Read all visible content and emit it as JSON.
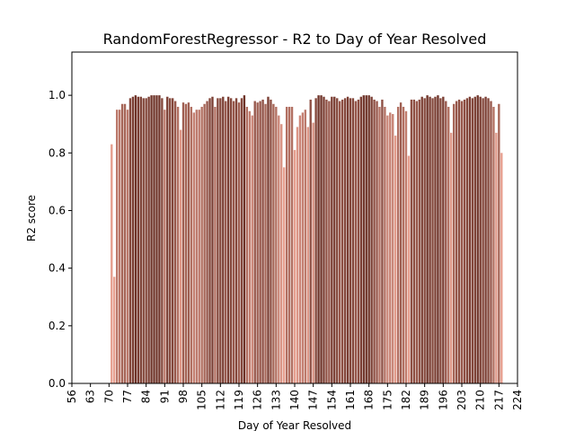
{
  "chart_data": {
    "type": "bar",
    "title": "RandomForestRegressor - R2 to Day of Year Resolved",
    "xlabel": "Day of Year Resolved",
    "ylabel": "R2 score",
    "x": [
      71,
      72,
      73,
      74,
      75,
      76,
      77,
      78,
      79,
      80,
      81,
      82,
      83,
      84,
      85,
      86,
      87,
      88,
      89,
      90,
      91,
      92,
      93,
      94,
      95,
      96,
      97,
      98,
      99,
      100,
      101,
      102,
      103,
      104,
      105,
      106,
      107,
      108,
      109,
      110,
      111,
      112,
      113,
      114,
      115,
      116,
      117,
      118,
      119,
      120,
      121,
      122,
      123,
      124,
      125,
      126,
      127,
      128,
      129,
      130,
      131,
      132,
      133,
      134,
      135,
      136,
      137,
      138,
      139,
      140,
      141,
      142,
      143,
      144,
      145,
      146,
      147,
      148,
      149,
      150,
      151,
      152,
      153,
      154,
      155,
      156,
      157,
      158,
      159,
      160,
      161,
      162,
      163,
      164,
      165,
      166,
      167,
      168,
      169,
      170,
      171,
      172,
      173,
      174,
      175,
      176,
      177,
      178,
      179,
      180,
      181,
      182,
      183,
      184,
      185,
      186,
      187,
      188,
      189,
      190,
      191,
      192,
      193,
      194,
      195,
      196,
      197,
      198,
      199,
      200,
      201,
      202,
      203,
      204,
      205,
      206,
      207,
      208,
      209,
      210,
      211,
      212,
      213,
      214,
      215,
      216,
      217,
      218
    ],
    "values": [
      0.83,
      0.37,
      0.95,
      0.95,
      0.97,
      0.97,
      0.95,
      0.99,
      0.995,
      1.0,
      0.995,
      0.995,
      0.99,
      0.99,
      0.995,
      1.0,
      1.0,
      1.0,
      1.0,
      0.99,
      0.95,
      0.995,
      0.99,
      0.99,
      0.98,
      0.96,
      0.88,
      0.975,
      0.97,
      0.975,
      0.96,
      0.94,
      0.95,
      0.95,
      0.96,
      0.97,
      0.98,
      0.99,
      0.995,
      0.96,
      0.99,
      0.99,
      0.995,
      0.98,
      0.995,
      0.99,
      0.98,
      0.99,
      0.975,
      0.99,
      1.0,
      0.96,
      0.945,
      0.93,
      0.98,
      0.975,
      0.98,
      0.985,
      0.97,
      0.995,
      0.985,
      0.97,
      0.96,
      0.93,
      0.9,
      0.75,
      0.96,
      0.96,
      0.96,
      0.81,
      0.89,
      0.93,
      0.94,
      0.95,
      0.89,
      0.985,
      0.905,
      0.99,
      1.0,
      1.0,
      0.995,
      0.985,
      0.98,
      0.995,
      0.995,
      0.99,
      0.98,
      0.985,
      0.99,
      0.995,
      0.99,
      0.99,
      0.98,
      0.985,
      0.995,
      1.0,
      1.0,
      1.0,
      0.995,
      0.985,
      0.98,
      0.96,
      0.985,
      0.96,
      0.93,
      0.94,
      0.935,
      0.86,
      0.96,
      0.975,
      0.96,
      0.945,
      0.79,
      0.985,
      0.985,
      0.98,
      0.985,
      0.995,
      0.99,
      1.0,
      0.995,
      0.99,
      0.995,
      1.0,
      0.99,
      0.995,
      0.98,
      0.96,
      0.87,
      0.97,
      0.98,
      0.985,
      0.98,
      0.985,
      0.99,
      0.995,
      0.99,
      0.995,
      1.0,
      0.995,
      0.99,
      0.995,
      0.99,
      0.98,
      0.96,
      0.87,
      0.97,
      0.8
    ],
    "colormap": [
      "#e8a090",
      "#6e3328"
    ],
    "xlim": [
      56,
      224
    ],
    "xticks": [
      56,
      63,
      70,
      77,
      84,
      91,
      98,
      105,
      112,
      119,
      126,
      133,
      140,
      147,
      154,
      161,
      168,
      175,
      182,
      189,
      196,
      203,
      210,
      217,
      224
    ],
    "ylim": [
      0,
      1.15
    ],
    "yticks": [
      {
        "value": 0,
        "label": "0.0"
      },
      {
        "value": 0.2,
        "label": "0.2"
      },
      {
        "value": 0.4,
        "label": "0.4"
      },
      {
        "value": 0.6,
        "label": "0.6"
      },
      {
        "value": 0.8,
        "label": "0.8"
      },
      {
        "value": 1.0,
        "label": "1.0"
      }
    ]
  }
}
